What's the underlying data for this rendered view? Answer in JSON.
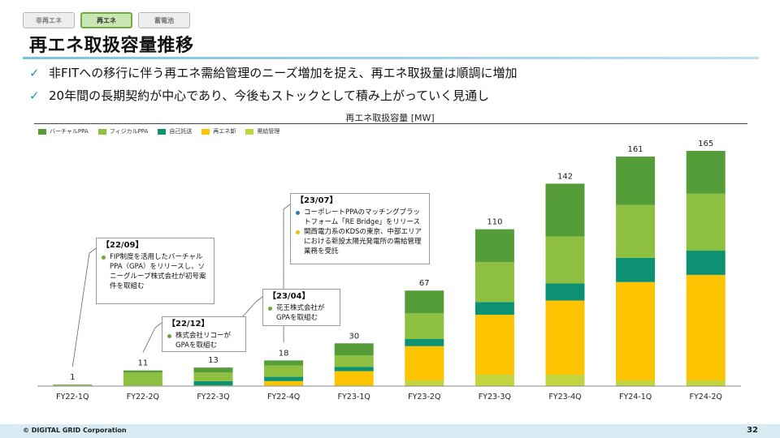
{
  "tabs": [
    {
      "label": "非再エネ",
      "active": false
    },
    {
      "label": "再エネ",
      "active": true
    },
    {
      "label": "蓄電池",
      "active": false
    }
  ],
  "title": "再エネ取扱容量推移",
  "bullets": [
    "非FITへの移行に伴う再エネ需給管理のニーズ増加を捉え、再エネ取扱量は順調に増加",
    "20年間の長期契約が中心であり、今後もストックとして積み上がっていく見通し"
  ],
  "colors": {
    "virtual_ppa": "#559d38",
    "physical_ppa": "#8dbf41",
    "self_wheeling": "#0d9173",
    "re_wholesale": "#fbc300",
    "supply_demand": "#c2d53e",
    "accent_rule": "#7cc3e3",
    "note_dot_blue": "#2b7ab8",
    "note_dot_green": "#6aaa3a",
    "note_dot_yellow": "#f4b900"
  },
  "chart_data": {
    "type": "bar",
    "stacked": true,
    "title": "再エネ取扱容量 [MW]",
    "categories": [
      "FY22-1Q",
      "FY22-2Q",
      "FY22-3Q",
      "FY22-4Q",
      "FY23-1Q",
      "FY23-2Q",
      "FY23-3Q",
      "FY23-4Q",
      "FY24-1Q",
      "FY24-2Q"
    ],
    "totals": [
      1,
      11,
      13,
      18,
      30,
      67,
      110,
      142,
      161,
      165
    ],
    "series": [
      {
        "name": "需給管理",
        "color_key": "supply_demand",
        "values": [
          0.5,
          0.5,
          0.5,
          0.5,
          0.5,
          4,
          8,
          8,
          4,
          4
        ]
      },
      {
        "name": "再エネ卸",
        "color_key": "re_wholesale",
        "values": [
          0,
          0,
          0,
          3,
          10,
          24,
          42,
          52,
          69,
          74
        ]
      },
      {
        "name": "自己託送",
        "color_key": "self_wheeling",
        "values": [
          0,
          0,
          3,
          3,
          3,
          5,
          9,
          12,
          17,
          17
        ]
      },
      {
        "name": "フィジカルPPA",
        "color_key": "physical_ppa",
        "values": [
          0,
          9,
          6,
          8,
          8,
          18,
          28,
          33,
          37,
          40
        ]
      },
      {
        "name": "バーチャルPPA",
        "color_key": "virtual_ppa",
        "values": [
          0.5,
          1.5,
          3.5,
          3.5,
          8.5,
          16,
          23,
          37,
          34,
          30
        ]
      }
    ],
    "legend_order": [
      "バーチャルPPA",
      "フィジカルPPA",
      "自己託送",
      "再エネ卸",
      "需給管理"
    ],
    "legend_position": "top-left",
    "ylim": [
      0,
      180
    ],
    "grid": false
  },
  "annotations": [
    {
      "id": "a1",
      "head": "【22/09】",
      "items": [
        {
          "dot": "note_dot_green",
          "text": "FIP制度を活用したバーチャルPPA（GPA）をリリースし、ソニーグループ株式会社が初号案件を取組む"
        }
      ],
      "target_category": "FY22-1Q"
    },
    {
      "id": "a2",
      "head": "【22/12】",
      "items": [
        {
          "dot": "note_dot_green",
          "text": "株式会社リコーがGPAを取組む"
        }
      ],
      "target_category": "FY22-2Q"
    },
    {
      "id": "a3",
      "head": "【23/04】",
      "items": [
        {
          "dot": "note_dot_green",
          "text": "花王株式会社がGPAを取組む"
        }
      ],
      "target_category": "FY22-3Q"
    },
    {
      "id": "a4",
      "head": "【23/07】",
      "items": [
        {
          "dot": "note_dot_blue",
          "text": "コーポレートPPAのマッチングプラットフォーム「RE Bridge」をリリース"
        },
        {
          "dot": "note_dot_yellow",
          "text": "関西電力系のKDSの東京、中部エリアにおける新設太陽光発電所の需給管理業務を受託"
        }
      ],
      "target_category": "FY22-4Q"
    }
  ],
  "footer": {
    "copyright": "© DIGITAL GRID Corporation",
    "page": "32"
  }
}
